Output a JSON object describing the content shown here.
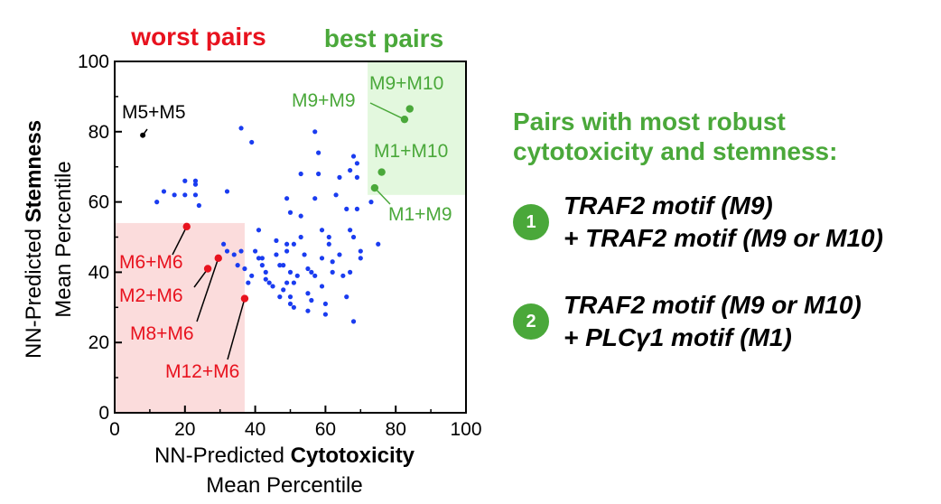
{
  "chart_data": {
    "type": "scatter",
    "title": "",
    "header_labels": {
      "worst": "worst pairs",
      "best": "best pairs"
    },
    "xlabel": {
      "prefix": "NN-Predicted ",
      "bold": "Cytotoxicity",
      "line2": "Mean Percentile"
    },
    "ylabel": {
      "prefix": "NN-Predicted ",
      "bold": "Stemness",
      "line2": "Mean Percentile"
    },
    "xlim": [
      0,
      100
    ],
    "ylim": [
      0,
      100
    ],
    "xticks": [
      0,
      20,
      40,
      60,
      80,
      100
    ],
    "yticks": [
      0,
      20,
      40,
      60,
      80,
      100
    ],
    "grid": false,
    "regions": [
      {
        "name": "worst",
        "x": [
          0,
          37
        ],
        "y": [
          0,
          54
        ],
        "color": "#fbdcdc"
      },
      {
        "name": "best",
        "x": [
          72,
          100
        ],
        "y": [
          62,
          100
        ],
        "color": "#e3f8de"
      }
    ],
    "points": [
      [
        12,
        60
      ],
      [
        14,
        63
      ],
      [
        17,
        62
      ],
      [
        20,
        66
      ],
      [
        20,
        62
      ],
      [
        23,
        66
      ],
      [
        23,
        65
      ],
      [
        23,
        62
      ],
      [
        24,
        59
      ],
      [
        32,
        63
      ],
      [
        36,
        81
      ],
      [
        39,
        77
      ],
      [
        31,
        48
      ],
      [
        32,
        46
      ],
      [
        34,
        45
      ],
      [
        36,
        46
      ],
      [
        35,
        42
      ],
      [
        37,
        41
      ],
      [
        38,
        37
      ],
      [
        39,
        39
      ],
      [
        40,
        46
      ],
      [
        41,
        52
      ],
      [
        41,
        44
      ],
      [
        42,
        44
      ],
      [
        42,
        42
      ],
      [
        43,
        40
      ],
      [
        43,
        38
      ],
      [
        44,
        37
      ],
      [
        45,
        36
      ],
      [
        46,
        45
      ],
      [
        46,
        49
      ],
      [
        47,
        42
      ],
      [
        48,
        35
      ],
      [
        47,
        33
      ],
      [
        48,
        42
      ],
      [
        49,
        48
      ],
      [
        49,
        46
      ],
      [
        50,
        33
      ],
      [
        50,
        31
      ],
      [
        49,
        37
      ],
      [
        50,
        40
      ],
      [
        51,
        48
      ],
      [
        51,
        37
      ],
      [
        51,
        30
      ],
      [
        49,
        61
      ],
      [
        50,
        57
      ],
      [
        52,
        39
      ],
      [
        53,
        68
      ],
      [
        53,
        56
      ],
      [
        53,
        50
      ],
      [
        54,
        45
      ],
      [
        55,
        41
      ],
      [
        55,
        34
      ],
      [
        55,
        29
      ],
      [
        56,
        40
      ],
      [
        56,
        32
      ],
      [
        57,
        39
      ],
      [
        57,
        80
      ],
      [
        58,
        74
      ],
      [
        58,
        68
      ],
      [
        57,
        61
      ],
      [
        59,
        52
      ],
      [
        59,
        44
      ],
      [
        59,
        36
      ],
      [
        60,
        31
      ],
      [
        60,
        28
      ],
      [
        61,
        50
      ],
      [
        61,
        48
      ],
      [
        62,
        43
      ],
      [
        62,
        40
      ],
      [
        63,
        62
      ],
      [
        64,
        67
      ],
      [
        64,
        45
      ],
      [
        65,
        39
      ],
      [
        66,
        58
      ],
      [
        67,
        52
      ],
      [
        68,
        50
      ],
      [
        67,
        40
      ],
      [
        66,
        33
      ],
      [
        68,
        26
      ],
      [
        67,
        69
      ],
      [
        68,
        73
      ],
      [
        69,
        67
      ],
      [
        69,
        58
      ],
      [
        70,
        46
      ],
      [
        70,
        44
      ],
      [
        73,
        60
      ],
      [
        75,
        48
      ],
      [
        69,
        71
      ]
    ],
    "labeled_points": [
      {
        "label": "M5+M5",
        "x": 8,
        "y": 79,
        "color": "#000000"
      },
      {
        "label": "M6+M6",
        "x": 20.5,
        "y": 53,
        "color": "#e8121e"
      },
      {
        "label": "M2+M6",
        "x": 26.5,
        "y": 41,
        "color": "#e8121e"
      },
      {
        "label": "M8+M6",
        "x": 29.5,
        "y": 44,
        "color": "#e8121e"
      },
      {
        "label": "M12+M6",
        "x": 37,
        "y": 32.5,
        "color": "#e8121e"
      },
      {
        "label": "M9+M9",
        "x": 82.5,
        "y": 83.5,
        "color": "#4aa83a"
      },
      {
        "label": "M9+M10",
        "x": 84,
        "y": 86.5,
        "color": "#4aa83a"
      },
      {
        "label": "M1+M10",
        "x": 76,
        "y": 68.5,
        "color": "#4aa83a"
      },
      {
        "label": "M1+M9",
        "x": 74,
        "y": 64,
        "color": "#4aa83a"
      }
    ],
    "colors": {
      "points": "#1a3cf0",
      "worst": "#e8121e",
      "best": "#4aa83a",
      "axis": "#000000"
    }
  },
  "panel": {
    "title_line1": "Pairs with most robust",
    "title_line2": "cytotoxicity and stemness:",
    "items": [
      {
        "badge": "1",
        "line1": "TRAF2 motif (M9)",
        "line2": "+ TRAF2 motif (M9 or M10)"
      },
      {
        "badge": "2",
        "line1": "TRAF2 motif (M9 or M10)",
        "line2": "+ PLCγ1 motif (M1)"
      }
    ]
  }
}
